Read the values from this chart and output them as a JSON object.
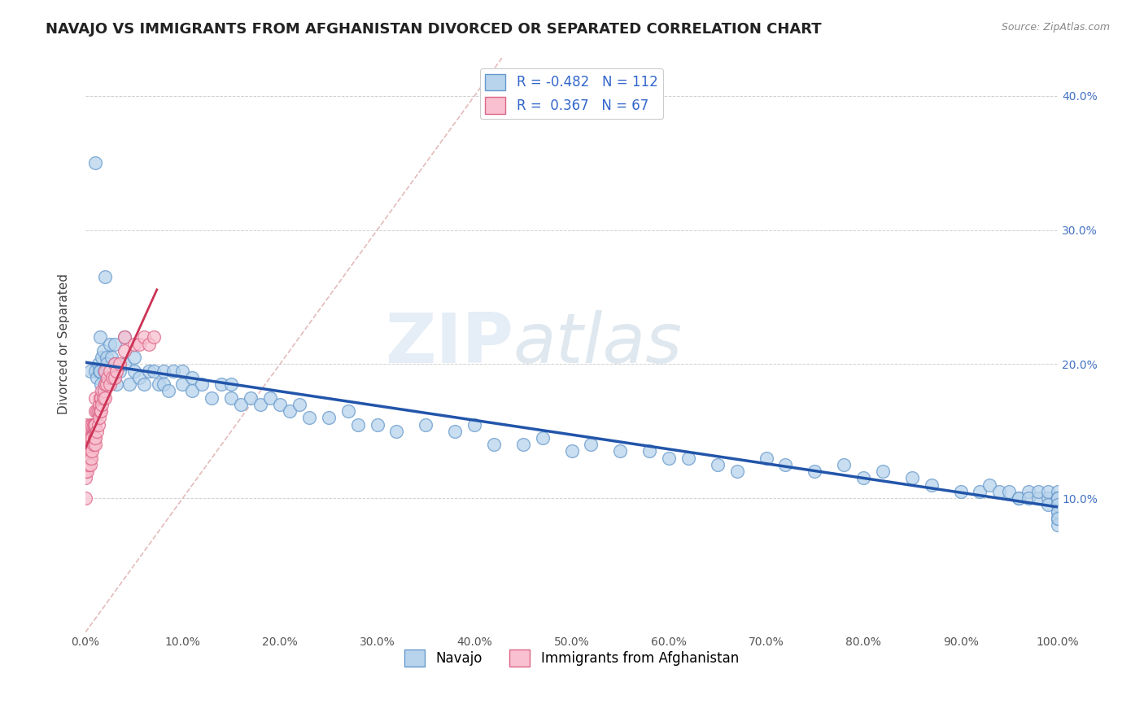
{
  "title": "NAVAJO VS IMMIGRANTS FROM AFGHANISTAN DIVORCED OR SEPARATED CORRELATION CHART",
  "source": "Source: ZipAtlas.com",
  "ylabel": "Divorced or Separated",
  "xlim": [
    0.0,
    1.0
  ],
  "ylim": [
    0.0,
    0.43
  ],
  "xticks": [
    0.0,
    0.1,
    0.2,
    0.3,
    0.4,
    0.5,
    0.6,
    0.7,
    0.8,
    0.9,
    1.0
  ],
  "yticks": [
    0.0,
    0.1,
    0.2,
    0.3,
    0.4
  ],
  "xtick_labels": [
    "0.0%",
    "10.0%",
    "20.0%",
    "30.0%",
    "40.0%",
    "50.0%",
    "60.0%",
    "70.0%",
    "80.0%",
    "90.0%",
    "100.0%"
  ],
  "ytick_labels_right": [
    "",
    "10.0%",
    "20.0%",
    "30.0%",
    "40.0%"
  ],
  "navajo_R": -0.482,
  "navajo_N": 112,
  "afghanistan_R": 0.367,
  "afghanistan_N": 67,
  "navajo_color": "#b8d4ec",
  "navajo_edge_color": "#6699cc",
  "afghanistan_color": "#f8c0d0",
  "afghanistan_edge_color": "#dd6688",
  "navajo_line_color": "#2255aa",
  "afghanistan_line_color": "#cc3355",
  "diagonal_color": "#ddaaaa",
  "watermark_color": "#c8d8ec",
  "legend_label_1": "Navajo",
  "legend_label_2": "Immigrants from Afghanistan",
  "navajo_x": [
    0.005,
    0.01,
    0.01,
    0.012,
    0.013,
    0.014,
    0.015,
    0.015,
    0.016,
    0.017,
    0.018,
    0.019,
    0.02,
    0.02,
    0.022,
    0.022,
    0.023,
    0.025,
    0.025,
    0.027,
    0.03,
    0.03,
    0.032,
    0.035,
    0.04,
    0.04,
    0.045,
    0.05,
    0.05,
    0.055,
    0.06,
    0.065,
    0.07,
    0.075,
    0.08,
    0.08,
    0.085,
    0.09,
    0.1,
    0.1,
    0.11,
    0.11,
    0.12,
    0.13,
    0.14,
    0.15,
    0.15,
    0.16,
    0.17,
    0.18,
    0.19,
    0.2,
    0.21,
    0.22,
    0.23,
    0.25,
    0.27,
    0.28,
    0.3,
    0.32,
    0.35,
    0.38,
    0.4,
    0.42,
    0.45,
    0.47,
    0.5,
    0.52,
    0.55,
    0.58,
    0.6,
    0.62,
    0.65,
    0.67,
    0.7,
    0.72,
    0.75,
    0.78,
    0.8,
    0.82,
    0.85,
    0.87,
    0.9,
    0.92,
    0.93,
    0.94,
    0.95,
    0.96,
    0.96,
    0.97,
    0.97,
    0.98,
    0.98,
    0.99,
    0.99,
    0.99,
    1.0,
    1.0,
    1.0,
    1.0,
    1.0,
    1.0,
    1.0,
    1.0,
    1.0,
    1.0,
    1.0,
    1.0,
    1.0,
    1.0,
    1.0,
    1.0
  ],
  "navajo_y": [
    0.195,
    0.35,
    0.195,
    0.19,
    0.2,
    0.195,
    0.22,
    0.195,
    0.185,
    0.205,
    0.21,
    0.195,
    0.265,
    0.185,
    0.205,
    0.2,
    0.195,
    0.195,
    0.215,
    0.205,
    0.2,
    0.215,
    0.185,
    0.195,
    0.2,
    0.22,
    0.185,
    0.195,
    0.205,
    0.19,
    0.185,
    0.195,
    0.195,
    0.185,
    0.195,
    0.185,
    0.18,
    0.195,
    0.185,
    0.195,
    0.18,
    0.19,
    0.185,
    0.175,
    0.185,
    0.175,
    0.185,
    0.17,
    0.175,
    0.17,
    0.175,
    0.17,
    0.165,
    0.17,
    0.16,
    0.16,
    0.165,
    0.155,
    0.155,
    0.15,
    0.155,
    0.15,
    0.155,
    0.14,
    0.14,
    0.145,
    0.135,
    0.14,
    0.135,
    0.135,
    0.13,
    0.13,
    0.125,
    0.12,
    0.13,
    0.125,
    0.12,
    0.125,
    0.115,
    0.12,
    0.115,
    0.11,
    0.105,
    0.105,
    0.11,
    0.105,
    0.105,
    0.1,
    0.1,
    0.105,
    0.1,
    0.1,
    0.105,
    0.1,
    0.105,
    0.095,
    0.1,
    0.1,
    0.095,
    0.095,
    0.105,
    0.1,
    0.095,
    0.1,
    0.085,
    0.09,
    0.085,
    0.1,
    0.095,
    0.09,
    0.08,
    0.085
  ],
  "afghanistan_x": [
    0.0,
    0.0,
    0.0,
    0.0,
    0.0,
    0.0,
    0.0,
    0.0,
    0.0,
    0.0,
    0.002,
    0.002,
    0.003,
    0.003,
    0.004,
    0.004,
    0.005,
    0.005,
    0.005,
    0.005,
    0.006,
    0.006,
    0.007,
    0.007,
    0.007,
    0.008,
    0.008,
    0.009,
    0.009,
    0.01,
    0.01,
    0.01,
    0.01,
    0.01,
    0.012,
    0.012,
    0.013,
    0.013,
    0.014,
    0.014,
    0.015,
    0.015,
    0.016,
    0.016,
    0.017,
    0.017,
    0.018,
    0.019,
    0.02,
    0.02,
    0.02,
    0.022,
    0.023,
    0.025,
    0.025,
    0.028,
    0.03,
    0.03,
    0.032,
    0.035,
    0.04,
    0.04,
    0.05,
    0.055,
    0.06,
    0.065,
    0.07
  ],
  "afghanistan_y": [
    0.1,
    0.115,
    0.12,
    0.125,
    0.13,
    0.135,
    0.14,
    0.145,
    0.15,
    0.155,
    0.12,
    0.135,
    0.125,
    0.14,
    0.13,
    0.145,
    0.125,
    0.135,
    0.145,
    0.155,
    0.13,
    0.145,
    0.135,
    0.145,
    0.155,
    0.14,
    0.155,
    0.145,
    0.155,
    0.14,
    0.145,
    0.155,
    0.165,
    0.175,
    0.15,
    0.165,
    0.155,
    0.165,
    0.16,
    0.17,
    0.165,
    0.175,
    0.165,
    0.175,
    0.17,
    0.18,
    0.175,
    0.18,
    0.175,
    0.185,
    0.195,
    0.185,
    0.19,
    0.185,
    0.195,
    0.19,
    0.19,
    0.2,
    0.195,
    0.2,
    0.21,
    0.22,
    0.215,
    0.215,
    0.22,
    0.215,
    0.22
  ]
}
